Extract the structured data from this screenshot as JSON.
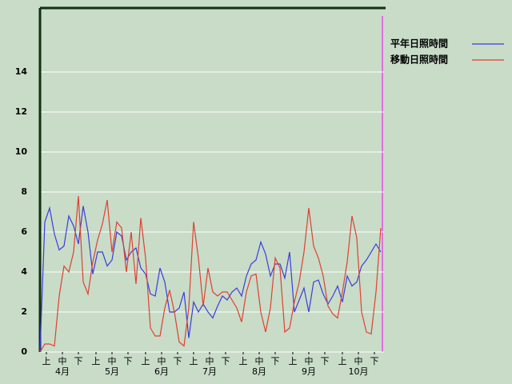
{
  "chart_data": {
    "type": "line",
    "x": [
      0,
      3,
      6,
      9,
      12,
      15,
      18,
      21,
      24,
      27,
      30,
      33,
      36,
      39,
      42,
      45,
      48,
      51,
      54,
      57,
      60,
      63,
      66,
      69,
      72,
      75,
      78,
      81,
      84,
      87,
      90,
      93,
      96,
      99,
      102,
      105,
      108,
      111,
      114,
      117,
      120,
      123,
      126,
      129,
      132,
      135,
      138,
      141,
      144,
      147,
      150,
      153,
      156,
      159,
      162,
      165,
      168,
      171,
      174,
      177,
      180,
      183,
      186,
      189,
      192,
      195,
      198,
      201,
      204,
      207,
      210,
      213
    ],
    "series": [
      {
        "name": "平年日照時間",
        "color": "#3c3cdc",
        "values": [
          0,
          6.5,
          7.2,
          5.9,
          5.1,
          5.3,
          6.8,
          6.3,
          5.4,
          7.3,
          6.0,
          3.9,
          5.0,
          5.0,
          4.3,
          4.6,
          6.0,
          5.8,
          4.6,
          5.0,
          5.2,
          4.2,
          3.9,
          2.9,
          2.8,
          4.2,
          3.5,
          2.0,
          2.0,
          2.2,
          3.0,
          0.7,
          2.5,
          2.0,
          2.4,
          2.0,
          1.7,
          2.3,
          2.8,
          2.6,
          3.0,
          3.2,
          2.8,
          3.8,
          4.4,
          4.6,
          5.5,
          4.9,
          3.8,
          4.4,
          4.4,
          3.7,
          5.0,
          2.0,
          2.6,
          3.2,
          2.0,
          3.5,
          3.6,
          2.9,
          2.4,
          2.8,
          3.3,
          2.5,
          3.8,
          3.3,
          3.5,
          4.3,
          4.6,
          5.0,
          5.4,
          5.0
        ]
      },
      {
        "name": "移動日照時間",
        "color": "#e04030",
        "values": [
          0,
          0.4,
          0.4,
          0.3,
          2.8,
          4.3,
          4.0,
          5.0,
          7.8,
          3.5,
          2.9,
          4.5,
          5.6,
          6.4,
          7.6,
          5.0,
          6.5,
          6.2,
          4.0,
          6.0,
          3.4,
          6.7,
          4.7,
          1.2,
          0.8,
          0.8,
          2.2,
          3.1,
          2.0,
          0.5,
          0.3,
          2.2,
          6.5,
          4.7,
          2.3,
          4.2,
          3.0,
          2.8,
          3.0,
          3.0,
          2.6,
          2.2,
          1.5,
          3.0,
          3.8,
          3.9,
          2.0,
          1.0,
          2.2,
          4.7,
          4.2,
          1.0,
          1.2,
          2.5,
          3.5,
          5.0,
          7.2,
          5.3,
          4.7,
          3.8,
          2.3,
          1.9,
          1.7,
          3.0,
          4.5,
          6.8,
          5.7,
          2.0,
          1.0,
          0.9,
          3.0,
          6.2
        ]
      }
    ],
    "xlim": [
      0,
      215
    ],
    "xticks": [
      {
        "value": 4,
        "label": "上"
      },
      {
        "value": 14,
        "label": "中"
      },
      {
        "value": 24,
        "label": "下"
      },
      {
        "value": 35,
        "label": "上"
      },
      {
        "value": 45,
        "label": "中"
      },
      {
        "value": 55,
        "label": "下"
      },
      {
        "value": 66,
        "label": "上"
      },
      {
        "value": 76,
        "label": "中"
      },
      {
        "value": 86,
        "label": "下"
      },
      {
        "value": 96,
        "label": "上"
      },
      {
        "value": 106,
        "label": "中"
      },
      {
        "value": 116,
        "label": "下"
      },
      {
        "value": 127,
        "label": "上"
      },
      {
        "value": 137,
        "label": "中"
      },
      {
        "value": 147,
        "label": "下"
      },
      {
        "value": 158,
        "label": "上"
      },
      {
        "value": 168,
        "label": "中"
      },
      {
        "value": 178,
        "label": "下"
      },
      {
        "value": 189,
        "label": "上"
      },
      {
        "value": 199,
        "label": "中"
      },
      {
        "value": 209,
        "label": "下"
      }
    ],
    "month_labels": [
      {
        "value": 14,
        "label": "4月"
      },
      {
        "value": 45,
        "label": "5月"
      },
      {
        "value": 76,
        "label": "6月"
      },
      {
        "value": 106,
        "label": "7月"
      },
      {
        "value": 137,
        "label": "8月"
      },
      {
        "value": 168,
        "label": "9月"
      },
      {
        "value": 199,
        "label": "10月"
      }
    ],
    "ylim": [
      0,
      17.2
    ],
    "yticks": [
      0,
      2,
      4,
      6,
      8,
      10,
      12,
      14
    ],
    "grid": true
  }
}
